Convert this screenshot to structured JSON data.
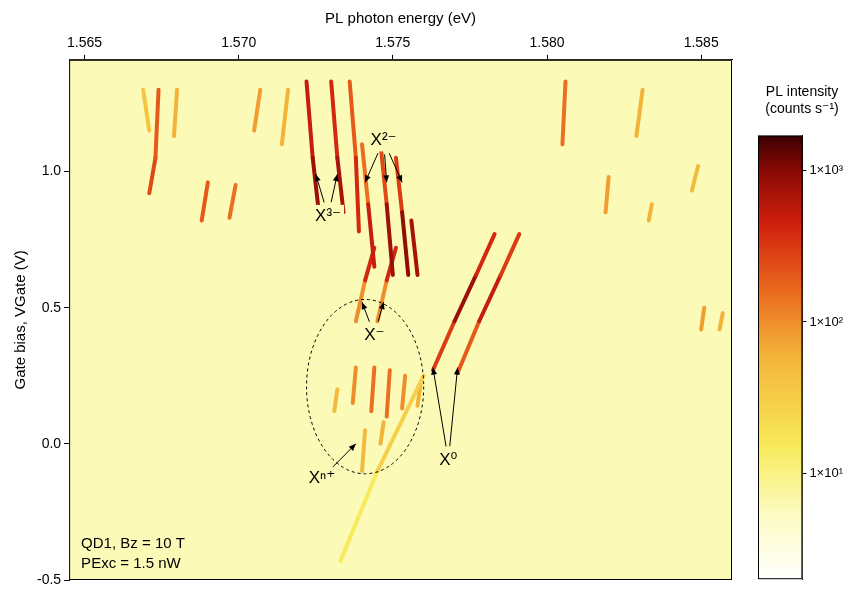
{
  "chart_data": {
    "type": "heatmap",
    "x_label": "PL photon energy (eV)",
    "y_label": "Gate bias, VGate (V)",
    "xlim": [
      1.5645,
      1.586
    ],
    "xticks": [
      1.565,
      {
        "value": 1.57,
        "label": "1.570"
      },
      1.575,
      {
        "value": 1.58,
        "label": "1.580"
      },
      1.585
    ],
    "ylim": [
      -0.5,
      1.41
    ],
    "yticks": [
      -0.5,
      {
        "value": 0,
        "label": "0.0"
      },
      0.5,
      {
        "value": 1,
        "label": "1.0"
      }
    ],
    "grid": false,
    "background_intensity": 6,
    "features": [
      {
        "x": [
          1.5669,
          1.5671
        ],
        "y": [
          1.3,
          1.15
        ],
        "intensity": [
          40,
          40
        ]
      },
      {
        "x": [
          1.5671,
          1.5673,
          1.5674
        ],
        "y": [
          0.92,
          1.05,
          1.3
        ],
        "intensity": [
          250,
          200,
          80
        ]
      },
      {
        "x": [
          1.5679,
          1.568
        ],
        "y": [
          1.13,
          1.3
        ],
        "intensity": [
          60,
          40
        ]
      },
      {
        "x": [
          1.5688,
          1.569
        ],
        "y": [
          0.82,
          0.96
        ],
        "intensity": [
          200,
          120
        ]
      },
      {
        "x": [
          1.5697,
          1.5699
        ],
        "y": [
          0.83,
          0.95
        ],
        "intensity": [
          150,
          80
        ]
      },
      {
        "x": [
          1.5705,
          1.5707
        ],
        "y": [
          1.15,
          1.3
        ],
        "intensity": [
          80,
          50
        ]
      },
      {
        "x": [
          1.5714,
          1.5716
        ],
        "y": [
          1.1,
          1.3
        ],
        "intensity": [
          60,
          50
        ]
      },
      {
        "x": [
          1.5722,
          1.5724,
          1.5726
        ],
        "y": [
          1.33,
          1.05,
          0.85
        ],
        "intensity": [
          500,
          800,
          300
        ]
      },
      {
        "x": [
          1.573,
          1.5732,
          1.5734
        ],
        "y": [
          1.33,
          1.05,
          0.85
        ],
        "intensity": [
          400,
          700,
          250
        ]
      },
      {
        "x": [
          1.5736,
          1.5738,
          1.5739
        ],
        "y": [
          1.33,
          1.05,
          0.78
        ],
        "intensity": [
          200,
          400,
          150
        ]
      },
      {
        "x": [
          1.574,
          1.5742,
          1.5744
        ],
        "y": [
          1.1,
          0.88,
          0.65
        ],
        "intensity": [
          150,
          500,
          300
        ]
      },
      {
        "x": [
          1.5746,
          1.5748,
          1.575
        ],
        "y": [
          1.1,
          0.88,
          0.62
        ],
        "intensity": [
          250,
          800,
          400
        ]
      },
      {
        "x": [
          1.5751,
          1.5753,
          1.5755
        ],
        "y": [
          1.05,
          0.85,
          0.62
        ],
        "intensity": [
          300,
          900,
          500
        ]
      },
      {
        "x": [
          1.5756,
          1.5758
        ],
        "y": [
          0.82,
          0.62
        ],
        "intensity": [
          700,
          300
        ]
      },
      {
        "x": [
          1.5738,
          1.5741,
          1.5744
        ],
        "y": [
          0.45,
          0.6,
          0.72
        ],
        "intensity": [
          100,
          400,
          250
        ]
      },
      {
        "x": [
          1.5745,
          1.5748,
          1.5751
        ],
        "y": [
          0.45,
          0.6,
          0.72
        ],
        "intensity": [
          100,
          400,
          300
        ]
      },
      {
        "x": [
          1.5763,
          1.577,
          1.5777,
          1.5783
        ],
        "y": [
          0.27,
          0.45,
          0.62,
          0.77
        ],
        "intensity": [
          300,
          800,
          400,
          80
        ]
      },
      {
        "x": [
          1.5771,
          1.5778,
          1.5785,
          1.5791
        ],
        "y": [
          0.26,
          0.45,
          0.62,
          0.77
        ],
        "intensity": [
          200,
          500,
          300,
          60
        ]
      },
      {
        "x": [
          1.5733,
          1.5745,
          1.576
        ],
        "y": [
          -0.43,
          -0.1,
          0.25
        ],
        "intensity": [
          15,
          30,
          40
        ]
      },
      {
        "x": [
          1.5731,
          1.5732
        ],
        "y": [
          0.12,
          0.2
        ],
        "intensity": [
          50,
          50
        ]
      },
      {
        "x": [
          1.5737,
          1.5738
        ],
        "y": [
          0.15,
          0.28
        ],
        "intensity": [
          100,
          100
        ]
      },
      {
        "x": [
          1.5743,
          1.5744
        ],
        "y": [
          0.12,
          0.28
        ],
        "intensity": [
          150,
          150
        ]
      },
      {
        "x": [
          1.5748,
          1.5749
        ],
        "y": [
          0.1,
          0.27
        ],
        "intensity": [
          150,
          150
        ]
      },
      {
        "x": [
          1.5753,
          1.5754
        ],
        "y": [
          0.13,
          0.25
        ],
        "intensity": [
          100,
          100
        ]
      },
      {
        "x": [
          1.5758,
          1.5759
        ],
        "y": [
          0.14,
          0.22
        ],
        "intensity": [
          60,
          60
        ]
      },
      {
        "x": [
          1.574,
          1.5741
        ],
        "y": [
          -0.1,
          0.05
        ],
        "intensity": [
          50,
          50
        ]
      },
      {
        "x": [
          1.5746,
          1.5747
        ],
        "y": [
          0.0,
          0.08
        ],
        "intensity": [
          60,
          60
        ]
      },
      {
        "x": [
          1.5805,
          1.5806
        ],
        "y": [
          1.1,
          1.33
        ],
        "intensity": [
          150,
          200
        ]
      },
      {
        "x": [
          1.5819,
          1.582
        ],
        "y": [
          0.85,
          0.98
        ],
        "intensity": [
          80,
          60
        ]
      },
      {
        "x": [
          1.5829,
          1.5831
        ],
        "y": [
          1.13,
          1.3
        ],
        "intensity": [
          60,
          50
        ]
      },
      {
        "x": [
          1.5833,
          1.5834
        ],
        "y": [
          0.82,
          0.88
        ],
        "intensity": [
          60,
          60
        ]
      },
      {
        "x": [
          1.5847,
          1.5849
        ],
        "y": [
          0.93,
          1.02
        ],
        "intensity": [
          50,
          50
        ]
      },
      {
        "x": [
          1.585,
          1.5851
        ],
        "y": [
          0.42,
          0.5
        ],
        "intensity": [
          80,
          80
        ]
      },
      {
        "x": [
          1.5856,
          1.5857
        ],
        "y": [
          0.42,
          0.48
        ],
        "intensity": [
          60,
          60
        ]
      }
    ],
    "annotations": [
      {
        "text": "X²⁻",
        "x": 1.5747,
        "y": 1.114,
        "targets": [
          [
            1.5741,
            0.96
          ],
          [
            1.5748,
            0.96
          ],
          [
            1.5753,
            0.96
          ]
        ]
      },
      {
        "text": "X³⁻",
        "x": 1.5729,
        "y": 0.837,
        "targets": [
          [
            1.5725,
            0.99
          ],
          [
            1.5732,
            0.99
          ]
        ]
      },
      {
        "text": "X⁻",
        "x": 1.5744,
        "y": 0.4,
        "targets": [
          [
            1.574,
            0.52
          ],
          [
            1.5747,
            0.52
          ]
        ]
      },
      {
        "text": "Xⁿ⁺",
        "x": 1.5727,
        "y": -0.125,
        "targets": [
          [
            1.5738,
            0.0
          ]
        ]
      },
      {
        "text": "X⁰",
        "x": 1.5768,
        "y": -0.06,
        "targets": [
          [
            1.5763,
            0.28
          ],
          [
            1.5771,
            0.28
          ]
        ]
      }
    ],
    "ellipse": {
      "center": [
        1.5741,
        0.21
      ],
      "radii": [
        0.0019,
        0.32
      ]
    },
    "inset_text": [
      "QD1, Bz = 10 T",
      "PExc = 1.5 nW"
    ],
    "colorbar": {
      "title": "PL intensity (counts s⁻¹)",
      "log": true,
      "range": [
        2,
        1700
      ],
      "ticks": [
        {
          "value": 10,
          "label": "1×10¹"
        },
        {
          "value": 100,
          "label": "1×10²"
        },
        {
          "value": 1000,
          "label": "1×10³"
        }
      ]
    }
  }
}
